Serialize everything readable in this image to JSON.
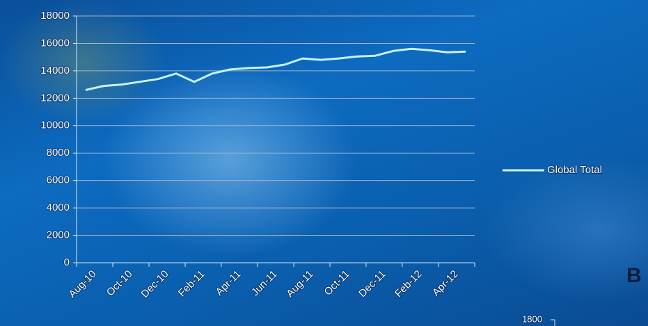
{
  "chart_data": [
    {
      "type": "line",
      "categories": [
        "Aug-10",
        null,
        "Oct-10",
        null,
        "Dec-10",
        null,
        "Feb-11",
        null,
        "Apr-11",
        null,
        "Jun-11",
        null,
        "Aug-11",
        null,
        "Oct-11",
        null,
        "Dec-11",
        null,
        "Feb-12",
        null,
        "Apr-12",
        null
      ],
      "series": [
        {
          "name": "Global Total",
          "color": "#c8f0f4",
          "values": [
            12600,
            12900,
            13000,
            13200,
            13400,
            13800,
            13200,
            13800,
            14100,
            14200,
            14250,
            14450,
            14900,
            14800,
            14900,
            15050,
            15100,
            15450,
            15600,
            15500,
            15350,
            15400
          ]
        }
      ],
      "ylim": [
        0,
        18000
      ],
      "yticks": [
        0,
        2000,
        4000,
        6000,
        8000,
        10000,
        12000,
        14000,
        16000,
        18000
      ],
      "grid": true
    },
    {
      "type": "line",
      "title": "B",
      "ylim": [
        0,
        1800
      ],
      "yticks": [
        1800
      ]
    }
  ]
}
